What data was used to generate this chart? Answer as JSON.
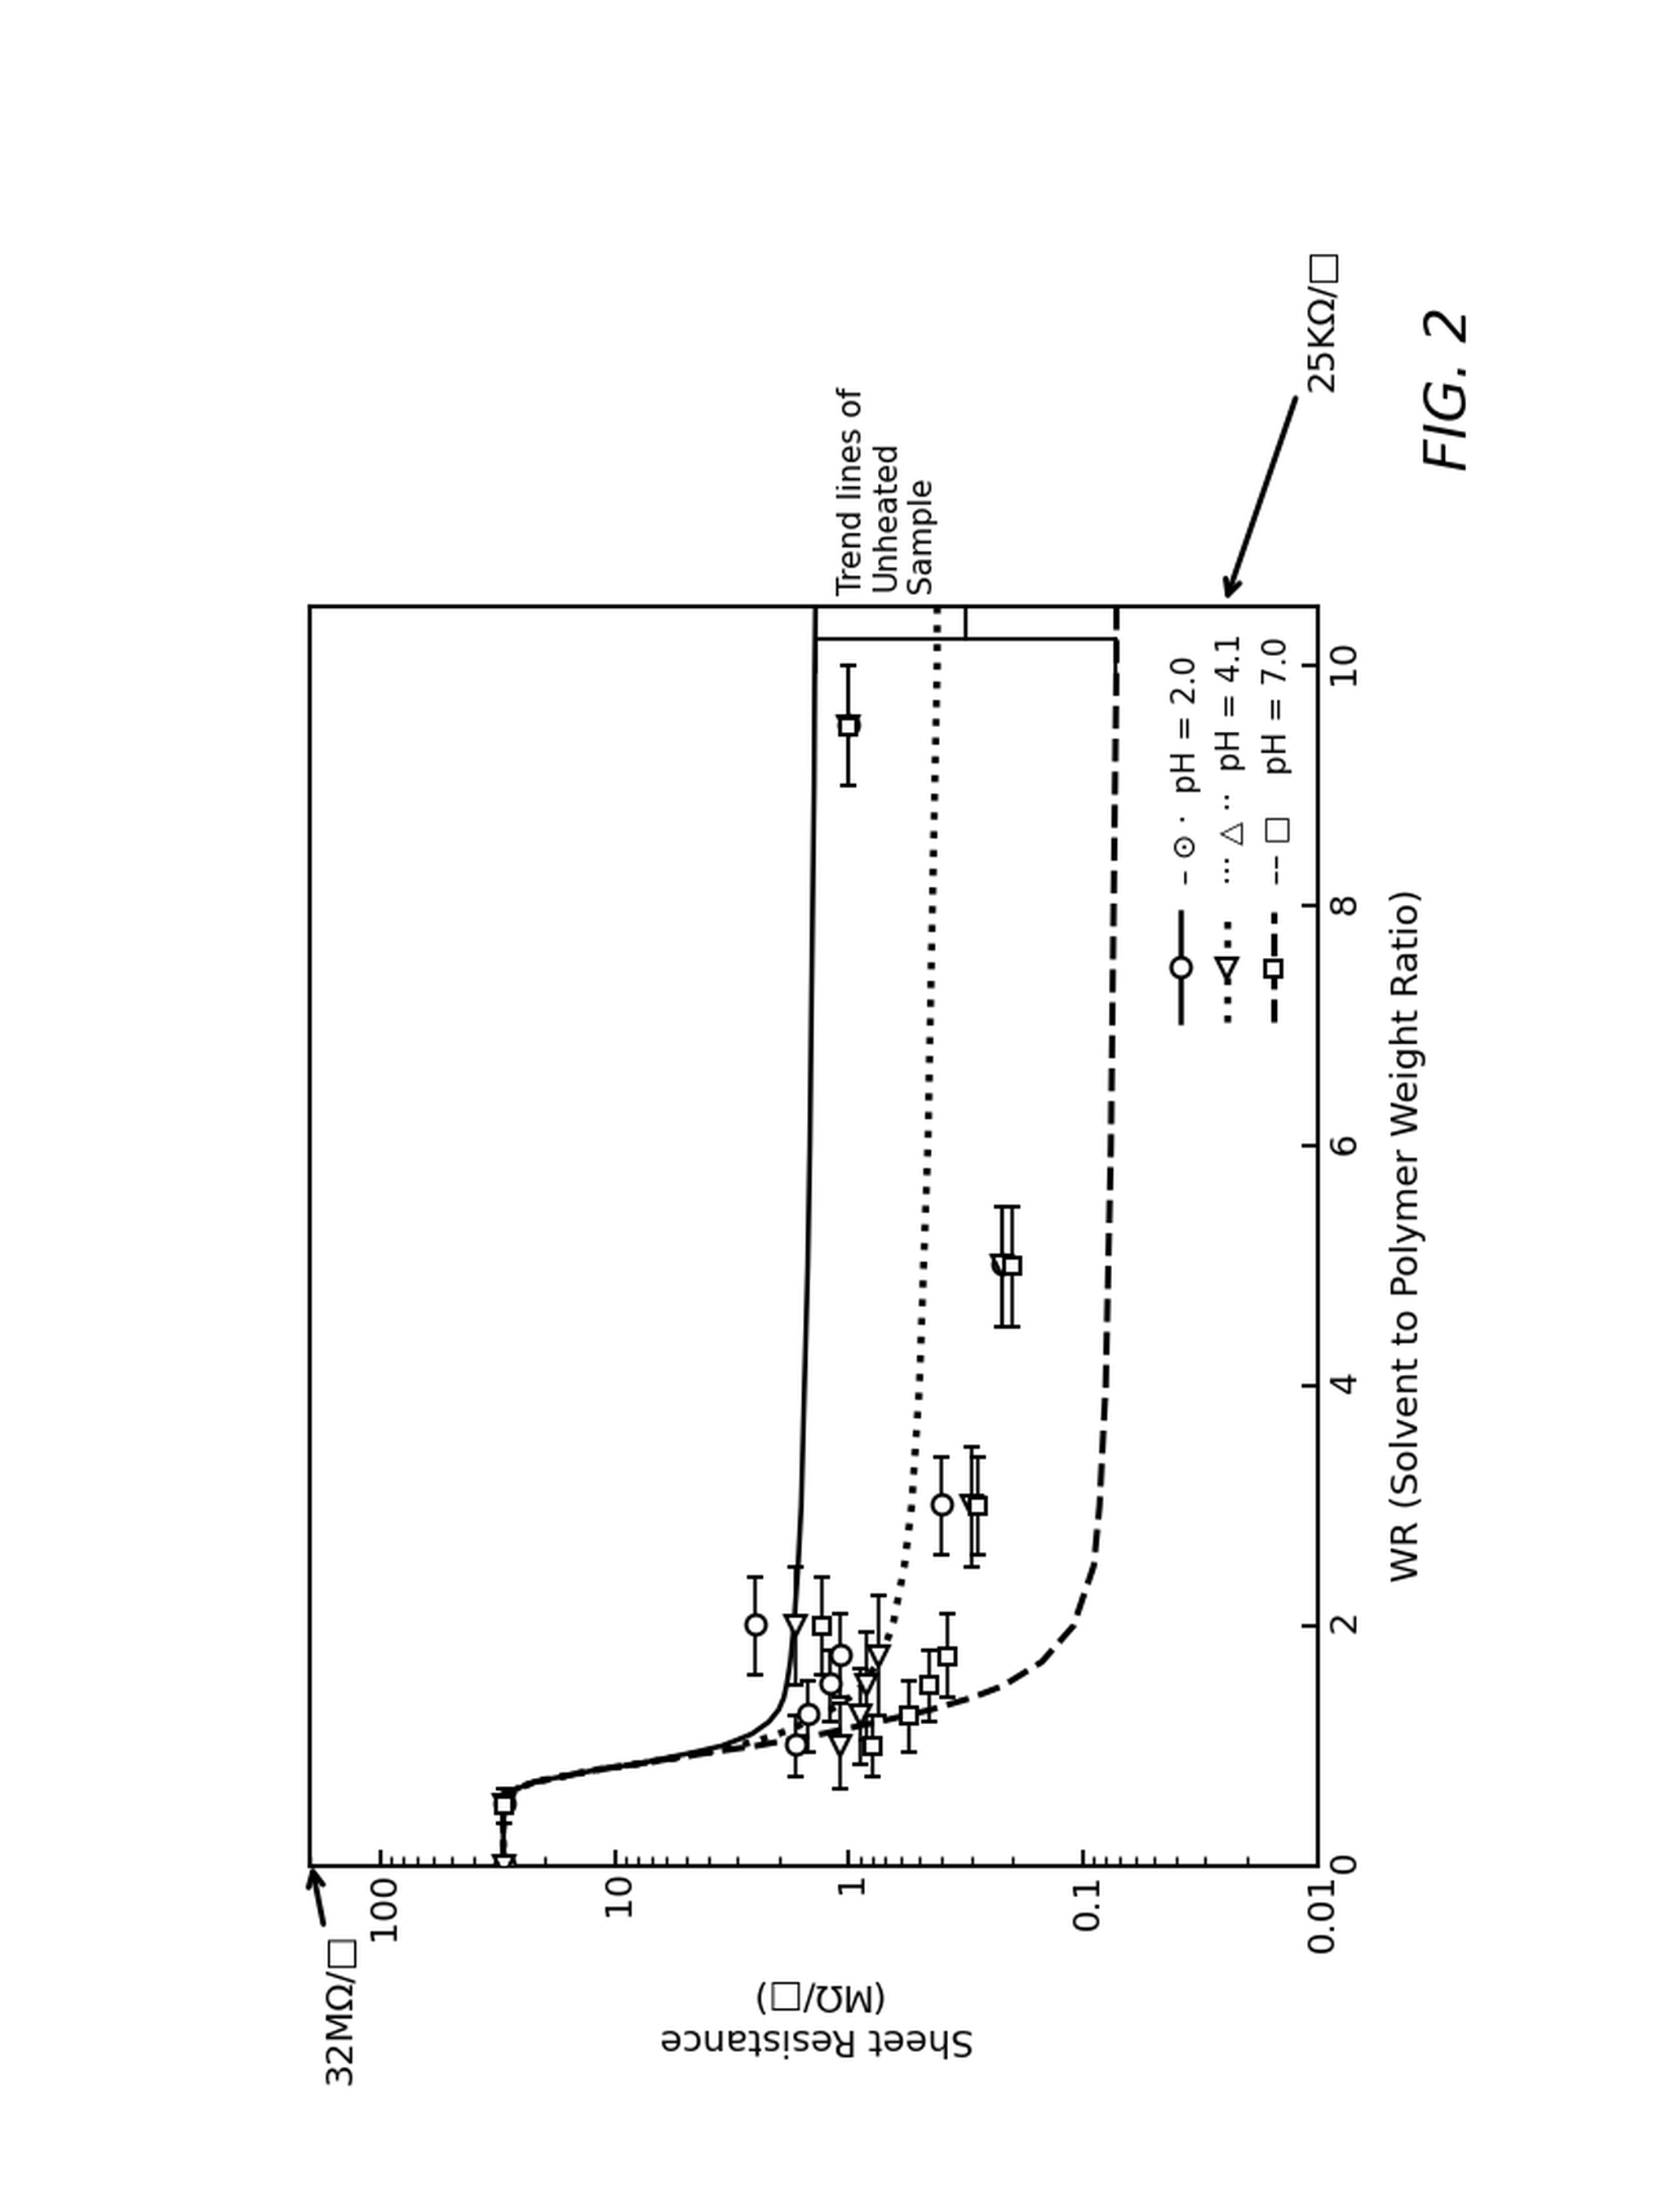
{
  "title": "FIG. 2",
  "xlabel": "WR (Solvent to Polymer Weight Ratio)",
  "ylabel": "Sheet Resistance\n(MΩ/□)",
  "annotation_32M": "32MΩ/□",
  "annotation_25K": "25KΩ/□",
  "trend_label": "Trend lines of\nUnheated\nSample",
  "xlim": [
    0,
    10.5
  ],
  "ylim": [
    0.01,
    200
  ],
  "xticks": [
    0,
    2,
    4,
    6,
    8,
    10
  ],
  "yticks": [
    0.01,
    0.1,
    1,
    10,
    100
  ],
  "ph20_trend_x": [
    0.0,
    0.1,
    0.3,
    0.5,
    0.6,
    0.7,
    0.8,
    0.85,
    0.9,
    0.95,
    1.0,
    1.05,
    1.1,
    1.2,
    1.3,
    1.4,
    1.5,
    1.7,
    2.0,
    2.5,
    3.0,
    4.0,
    5.0,
    6.0,
    7.0,
    8.0,
    9.0,
    10.0,
    10.5
  ],
  "ph20_trend_y": [
    30,
    30,
    30,
    30,
    30,
    22,
    12,
    8,
    6,
    4.5,
    3.5,
    3.0,
    2.6,
    2.2,
    2.0,
    1.9,
    1.85,
    1.78,
    1.72,
    1.65,
    1.6,
    1.55,
    1.5,
    1.47,
    1.45,
    1.43,
    1.41,
    1.4,
    1.39
  ],
  "ph41_trend_x": [
    0.0,
    0.1,
    0.3,
    0.5,
    0.6,
    0.7,
    0.8,
    0.85,
    0.9,
    0.95,
    1.0,
    1.05,
    1.1,
    1.2,
    1.3,
    1.4,
    1.5,
    1.7,
    2.0,
    2.5,
    3.0,
    4.0,
    5.0,
    6.0,
    7.0,
    8.0,
    9.0,
    10.0,
    10.5
  ],
  "ph41_trend_y": [
    30,
    30,
    30,
    30,
    30,
    22,
    12,
    8,
    5.5,
    4.0,
    3.0,
    2.4,
    2.0,
    1.5,
    1.2,
    1.0,
    0.88,
    0.75,
    0.65,
    0.58,
    0.54,
    0.5,
    0.48,
    0.46,
    0.45,
    0.44,
    0.43,
    0.42,
    0.42
  ],
  "ph70_trend_x": [
    0.0,
    0.1,
    0.3,
    0.5,
    0.6,
    0.7,
    0.8,
    0.85,
    0.9,
    0.95,
    1.0,
    1.05,
    1.1,
    1.2,
    1.3,
    1.4,
    1.5,
    1.7,
    2.0,
    2.5,
    3.0,
    4.0,
    5.0,
    6.0,
    7.0,
    8.0,
    9.0,
    10.0,
    10.5
  ],
  "ph70_trend_y": [
    30,
    30,
    30,
    30,
    30,
    22,
    12,
    8,
    5.5,
    3.8,
    2.5,
    1.8,
    1.3,
    0.75,
    0.45,
    0.3,
    0.22,
    0.15,
    0.11,
    0.09,
    0.085,
    0.08,
    0.078,
    0.076,
    0.075,
    0.074,
    0.073,
    0.072,
    0.072
  ],
  "ph20_data_x": [
    0.0,
    0.5,
    1.0,
    1.25,
    1.5,
    1.75,
    2.0,
    3.0,
    5.0,
    9.5
  ],
  "ph20_data_y": [
    30,
    30,
    1.7,
    1.5,
    1.2,
    1.1,
    2.5,
    0.4,
    0.22,
    1.0
  ],
  "ph20_xerr": [
    0.0,
    0.15,
    0.25,
    0.3,
    0.3,
    0.35,
    0.4,
    0.4,
    0.5,
    0.5
  ],
  "ph41_data_x": [
    0.0,
    0.5,
    1.0,
    1.25,
    1.5,
    1.75,
    2.0,
    3.0,
    5.0,
    9.5
  ],
  "ph41_data_y": [
    30,
    30,
    1.1,
    0.9,
    0.85,
    0.75,
    1.7,
    0.3,
    0.22,
    1.0
  ],
  "ph41_xerr": [
    0.0,
    0.15,
    0.35,
    0.4,
    0.45,
    0.5,
    0.5,
    0.5,
    0.5,
    0.5
  ],
  "ph70_data_x": [
    0.5,
    1.0,
    1.25,
    1.5,
    1.75,
    2.0,
    3.0,
    5.0,
    9.5
  ],
  "ph70_data_y": [
    30,
    0.8,
    0.55,
    0.45,
    0.38,
    1.3,
    0.28,
    0.2,
    1.0
  ],
  "ph70_xerr": [
    0.15,
    0.25,
    0.3,
    0.3,
    0.35,
    0.4,
    0.4,
    0.5,
    0.5
  ]
}
